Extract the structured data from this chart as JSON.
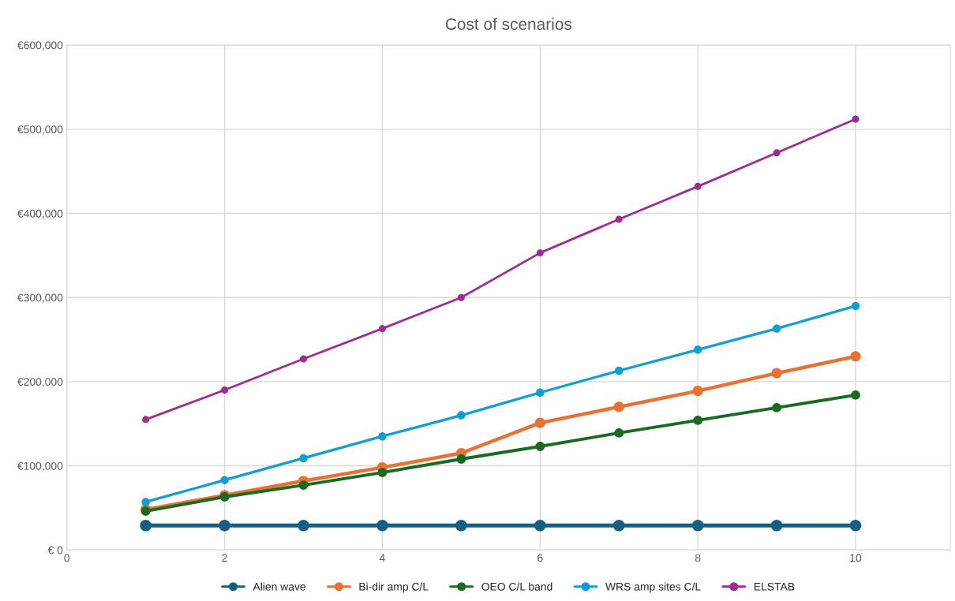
{
  "chart_data": {
    "type": "line",
    "title": "Cost of scenarios",
    "x": [
      1,
      2,
      3,
      4,
      5,
      6,
      7,
      8,
      9,
      10
    ],
    "series": [
      {
        "name": "Alien wave",
        "color": "#156082",
        "values": [
          29000,
          29000,
          29000,
          29000,
          29000,
          29000,
          29000,
          29000,
          29000,
          29000
        ]
      },
      {
        "name": "Bi-dir amp C/L",
        "color": "#e97132",
        "values": [
          48000,
          65000,
          82000,
          98000,
          115000,
          151000,
          170000,
          189000,
          210000,
          230000
        ]
      },
      {
        "name": "OEO C/L band",
        "color": "#196b24",
        "values": [
          46000,
          63000,
          77000,
          92000,
          108000,
          123000,
          139000,
          154000,
          169000,
          184000
        ]
      },
      {
        "name": "WRS amp sites C/L",
        "color": "#0f9ed5",
        "values": [
          57000,
          83000,
          109000,
          135000,
          160000,
          187000,
          213000,
          238000,
          263000,
          290000
        ]
      },
      {
        "name": "ELSTAB",
        "color": "#a02b93",
        "values": [
          155000,
          190000,
          227000,
          263000,
          300000,
          353000,
          393000,
          432000,
          472000,
          512000
        ]
      }
    ],
    "xlim": [
      0,
      11.2
    ],
    "xticks": [
      0,
      2,
      4,
      6,
      8,
      10
    ],
    "ylim": [
      0,
      600000
    ],
    "yticks": [
      {
        "value": 0,
        "label": "€ 0"
      },
      {
        "value": 100000,
        "label": "€100,000"
      },
      {
        "value": 200000,
        "label": "€200,000"
      },
      {
        "value": 300000,
        "label": "€300,000"
      },
      {
        "value": 400000,
        "label": "€400,000"
      },
      {
        "value": 500000,
        "label": "€500,000"
      },
      {
        "value": 600000,
        "label": "€600,000"
      }
    ],
    "grid": true,
    "legend": "bottom",
    "marker": "circle",
    "line_style": "solid"
  }
}
